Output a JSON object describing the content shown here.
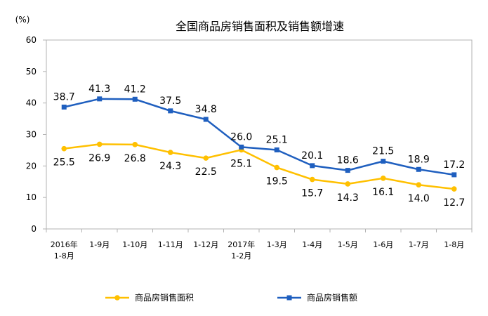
{
  "chart_data": {
    "type": "line",
    "title": "全国商品房销售面积及销售额增速",
    "y_unit_label": "(%)",
    "ylim": [
      0,
      60
    ],
    "y_ticks": [
      "0",
      "10",
      "20",
      "30",
      "40",
      "50",
      "60"
    ],
    "grid": false,
    "legend_position": "bottom",
    "categories": [
      [
        "2016年",
        "1-8月"
      ],
      [
        "1-9月"
      ],
      [
        "1-10月"
      ],
      [
        "1-11月"
      ],
      [
        "1-12月"
      ],
      [
        "2017年",
        "1-2月"
      ],
      [
        "1-3月"
      ],
      [
        "1-4月"
      ],
      [
        "1-5月"
      ],
      [
        "1-6月"
      ],
      [
        "1-7月"
      ],
      [
        "1-8月"
      ]
    ],
    "series": [
      {
        "name": "商品房销售面积",
        "color": "#FFC000",
        "marker": "circle",
        "label_position": "below",
        "values": [
          25.5,
          26.9,
          26.8,
          24.3,
          22.5,
          25.1,
          19.5,
          15.7,
          14.3,
          16.1,
          14.0,
          12.7
        ],
        "labels": [
          "25.5",
          "26.9",
          "26.8",
          "24.3",
          "22.5",
          "25.1",
          "19.5",
          "15.7",
          "14.3",
          "16.1",
          "14.0",
          "12.7"
        ]
      },
      {
        "name": "商品房销售额",
        "color": "#1F5FBF",
        "marker": "square",
        "label_position": "above",
        "values": [
          38.7,
          41.3,
          41.2,
          37.5,
          34.8,
          26.0,
          25.1,
          20.1,
          18.6,
          21.5,
          18.9,
          17.2
        ],
        "labels": [
          "38.7",
          "41.3",
          "41.2",
          "37.5",
          "34.8",
          "26.0",
          "25.1",
          "20.1",
          "18.6",
          "21.5",
          "18.9",
          "17.2"
        ]
      }
    ]
  }
}
